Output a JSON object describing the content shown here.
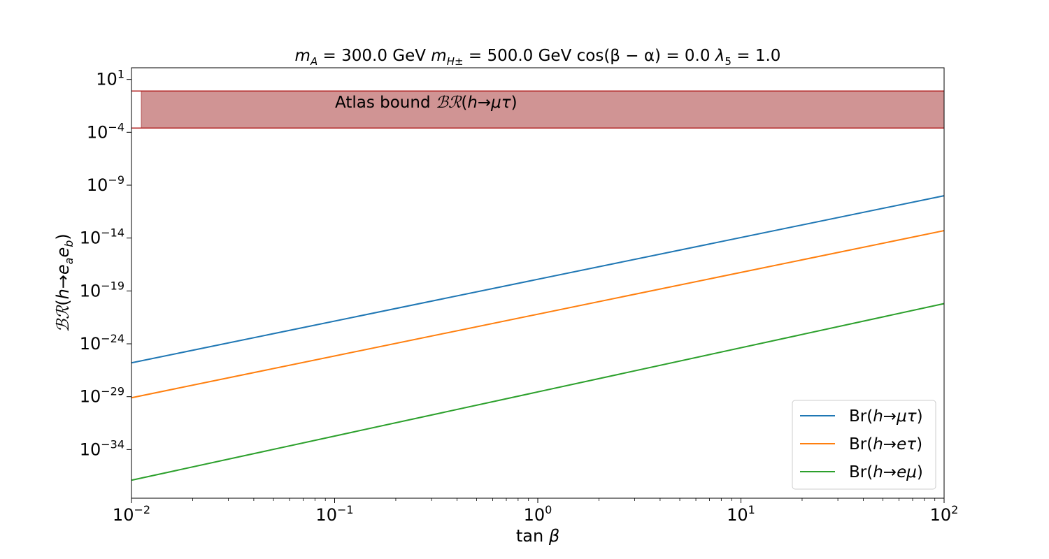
{
  "chart_data": {
    "type": "line",
    "title": {
      "mA_symbol": "m",
      "mA_sub": "A",
      "mA_value": " = 300.0 GeV ",
      "mH_symbol": "m",
      "mH_sub": "H±",
      "mH_value": " = 500.0 GeV cos(β − α) = 0.0 ",
      "lambda_symbol": "λ",
      "lambda_sub": "5",
      "lambda_value": " = 1.0"
    },
    "xlabel": {
      "prefix": "tan ",
      "symbol": "β"
    },
    "ylabel": {
      "script": "ℬℛ",
      "open": "(",
      "h": "h",
      "arrow": "→",
      "ea": "e",
      "a": "a",
      "eb": "e",
      "b": "b",
      "close": ")"
    },
    "x_scale": "log",
    "y_scale": "log",
    "xlim": [
      0.01,
      100
    ],
    "ylim_exponent": [
      -38.6,
      2.1
    ],
    "x_ticks": [
      {
        "base": "10",
        "exp": "−2",
        "value": 0.01
      },
      {
        "base": "10",
        "exp": "−1",
        "value": 0.1
      },
      {
        "base": "10",
        "exp": "0",
        "value": 1
      },
      {
        "base": "10",
        "exp": "1",
        "value": 10
      },
      {
        "base": "10",
        "exp": "2",
        "value": 100
      }
    ],
    "y_ticks": [
      {
        "base": "10",
        "exp": "1",
        "value": 1
      },
      {
        "base": "10",
        "exp": "−4",
        "value": -4
      },
      {
        "base": "10",
        "exp": "−9",
        "value": -9
      },
      {
        "base": "10",
        "exp": "−14",
        "value": -14
      },
      {
        "base": "10",
        "exp": "−19",
        "value": -19
      },
      {
        "base": "10",
        "exp": "−24",
        "value": -24
      },
      {
        "base": "10",
        "exp": "−29",
        "value": -29
      },
      {
        "base": "10",
        "exp": "−34",
        "value": -34
      }
    ],
    "series": [
      {
        "name": "Br(h→μτ)",
        "label_prefix": "Br(",
        "label_h": "h",
        "label_arrow": "→",
        "label_ch": "μτ",
        "label_suffix": ")",
        "color": "#1f77b4",
        "x": [
          0.01,
          100
        ],
        "log10_y": [
          -25.8,
          -10.0
        ]
      },
      {
        "name": "Br(h→eτ)",
        "label_prefix": "Br(",
        "label_h": "h",
        "label_arrow": "→",
        "label_ch": "eτ",
        "label_suffix": ")",
        "color": "#ff7f0e",
        "x": [
          0.01,
          100
        ],
        "log10_y": [
          -29.1,
          -13.3
        ]
      },
      {
        "name": "Br(h→eμ)",
        "label_prefix": "Br(",
        "label_h": "h",
        "label_arrow": "→",
        "label_ch": "eμ",
        "label_suffix": ")",
        "color": "#2ca02c",
        "x": [
          0.01,
          100
        ],
        "log10_y": [
          -36.9,
          -20.2
        ]
      }
    ],
    "band": {
      "label_prefix": "Atlas bound ",
      "label_script": "ℬℛ",
      "label_open": "(",
      "label_h": "h",
      "label_arrow": "→",
      "label_ch": "μτ",
      "label_close": ")",
      "x_start": 0.0112,
      "log10_y_low": -3.6,
      "log10_y_high": -0.1,
      "fill": "#d09494",
      "edge": "#b22222"
    },
    "legend_position": "lower-right",
    "grid": false
  }
}
